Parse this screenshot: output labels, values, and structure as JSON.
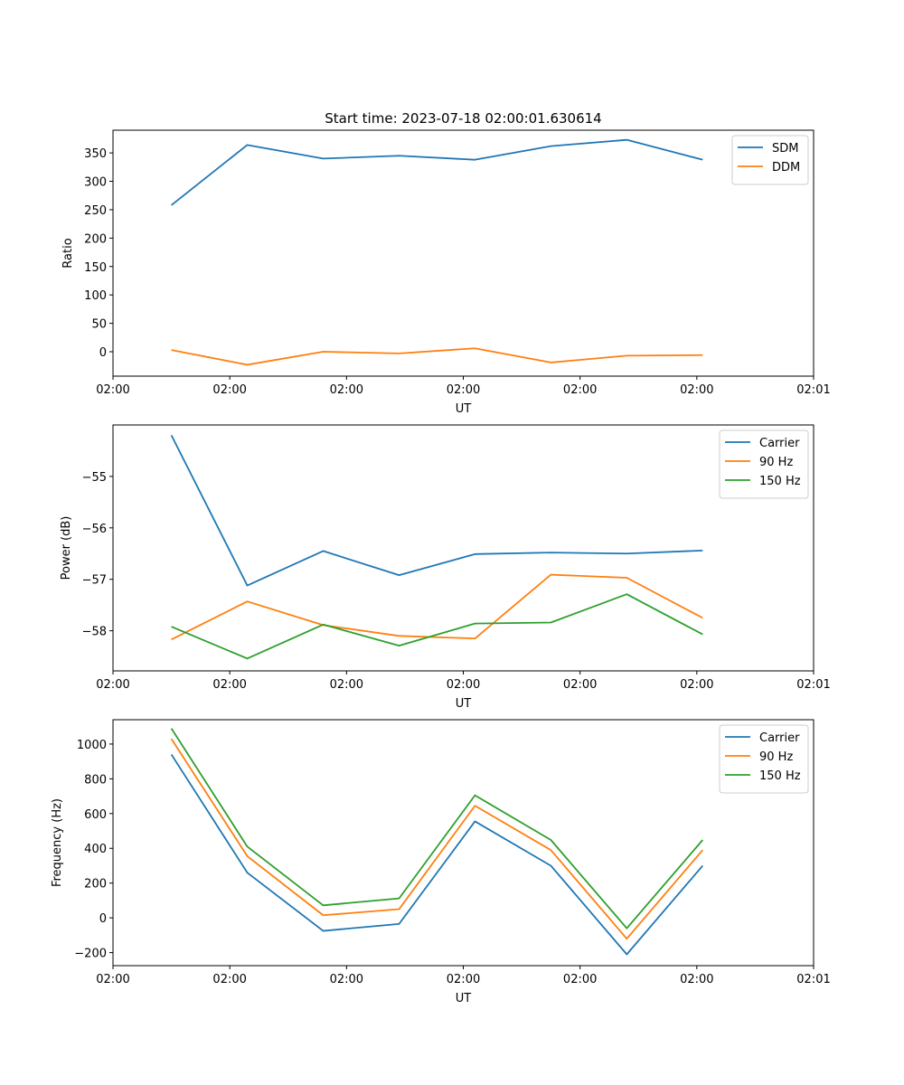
{
  "figure": {
    "title": "Start time: 2023-07-18 02:00:01.630614"
  },
  "chart_data": [
    {
      "type": "line",
      "xlabel": "UT",
      "ylabel": "Ratio",
      "x_ticks": [
        "02:00",
        "02:00",
        "02:00",
        "02:00",
        "02:00",
        "02:00",
        "02:01"
      ],
      "xlim": [
        0,
        6
      ],
      "x": [
        0.5,
        1.15,
        1.8,
        2.45,
        3.1,
        3.75,
        4.4,
        5.05
      ],
      "ylim": [
        -43,
        390
      ],
      "y_ticks": [
        0,
        50,
        100,
        150,
        200,
        250,
        300,
        350
      ],
      "legend_loc": "top-right",
      "series": [
        {
          "name": "SDM",
          "color": "#1f77b4",
          "values": [
            258,
            364,
            340,
            345,
            338,
            362,
            373,
            338
          ]
        },
        {
          "name": "DDM",
          "color": "#ff7f0e",
          "values": [
            3,
            -23,
            0,
            -3,
            6,
            -19,
            -7,
            -6
          ]
        }
      ]
    },
    {
      "type": "line",
      "xlabel": "UT",
      "ylabel": "Power (dB)",
      "x_ticks": [
        "02:00",
        "02:00",
        "02:00",
        "02:00",
        "02:00",
        "02:00",
        "02:01"
      ],
      "xlim": [
        0,
        6
      ],
      "x": [
        0.5,
        1.15,
        1.8,
        2.45,
        3.1,
        3.75,
        4.4,
        5.05
      ],
      "ylim": [
        -58.78,
        -54.0
      ],
      "y_ticks": [
        -55,
        -56,
        -57,
        -58
      ],
      "legend_loc": "top-right",
      "series": [
        {
          "name": "Carrier",
          "color": "#1f77b4",
          "values": [
            -54.2,
            -57.12,
            -56.45,
            -56.92,
            -56.51,
            -56.48,
            -56.5,
            -56.44
          ]
        },
        {
          "name": "90 Hz",
          "color": "#ff7f0e",
          "values": [
            -58.17,
            -57.43,
            -57.89,
            -58.1,
            -58.15,
            -56.91,
            -56.97,
            -57.75
          ]
        },
        {
          "name": "150 Hz",
          "color": "#2ca02c",
          "values": [
            -57.92,
            -58.54,
            -57.88,
            -58.29,
            -57.86,
            -57.84,
            -57.29,
            -58.07
          ]
        }
      ]
    },
    {
      "type": "line",
      "xlabel": "UT",
      "ylabel": "Frequency (Hz)",
      "x_ticks": [
        "02:00",
        "02:00",
        "02:00",
        "02:00",
        "02:00",
        "02:00",
        "02:01"
      ],
      "xlim": [
        0,
        6
      ],
      "x": [
        0.5,
        1.15,
        1.8,
        2.45,
        3.1,
        3.75,
        4.4,
        5.05
      ],
      "ylim": [
        -275,
        1140
      ],
      "y_ticks": [
        -200,
        0,
        200,
        400,
        600,
        800,
        1000
      ],
      "legend_loc": "top-right",
      "series": [
        {
          "name": "Carrier",
          "color": "#1f77b4",
          "values": [
            940,
            260,
            -75,
            -35,
            555,
            300,
            -210,
            300
          ]
        },
        {
          "name": "90 Hz",
          "color": "#ff7f0e",
          "values": [
            1030,
            355,
            15,
            50,
            645,
            390,
            -120,
            390
          ]
        },
        {
          "name": "150 Hz",
          "color": "#2ca02c",
          "values": [
            1090,
            410,
            72,
            112,
            705,
            448,
            -60,
            448
          ]
        }
      ]
    }
  ]
}
